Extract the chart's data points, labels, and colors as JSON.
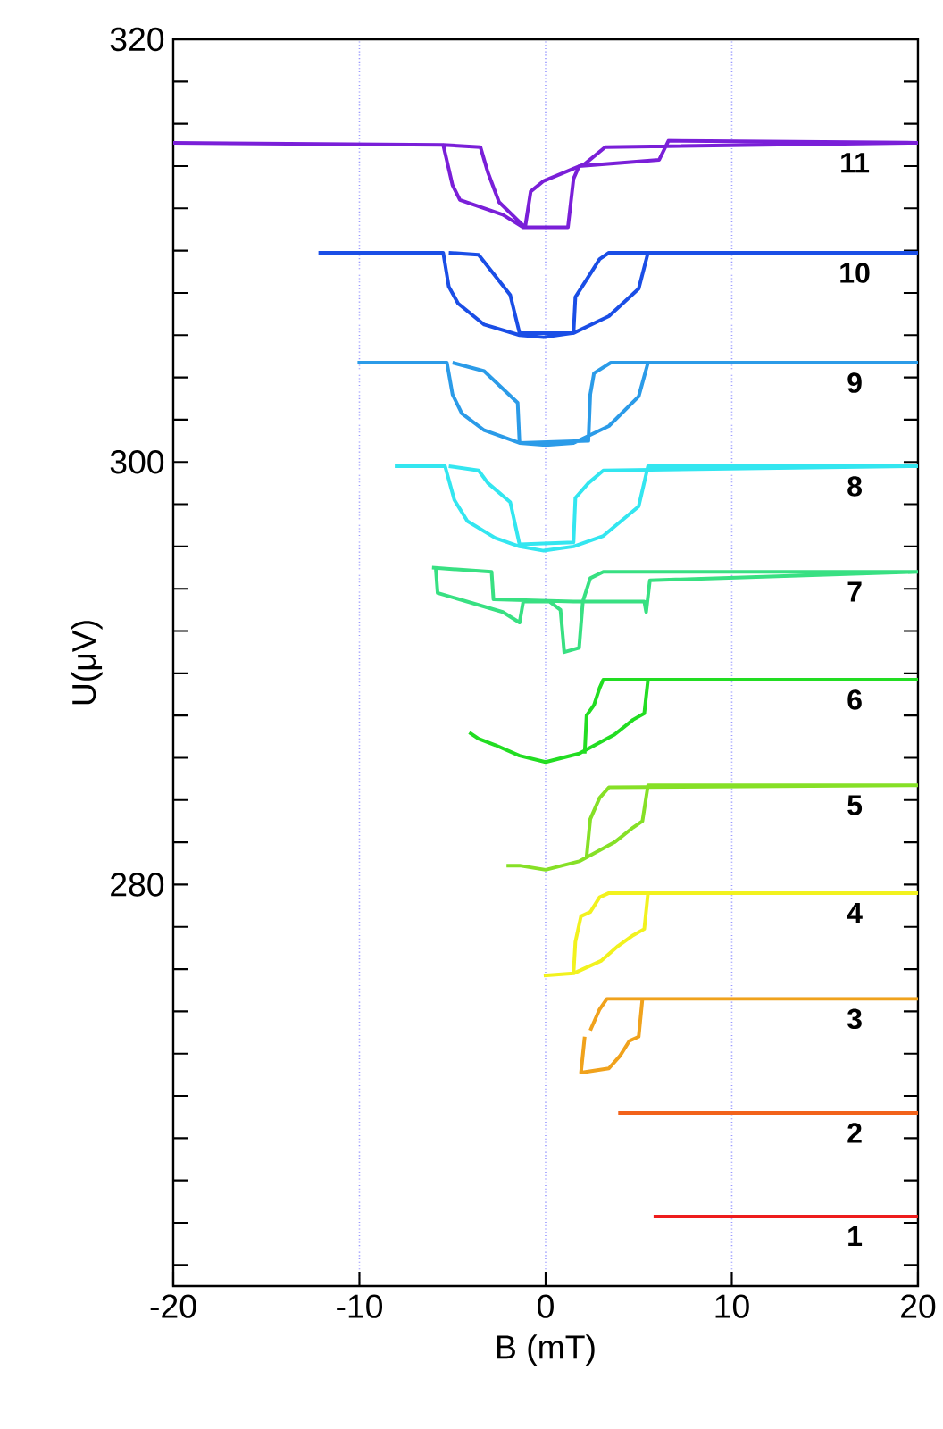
{
  "chart_data": {
    "type": "line",
    "xlabel": "B (mT)",
    "ylabel": "U(μV)",
    "xlim": [
      -20,
      20
    ],
    "ylim": [
      261,
      320
    ],
    "xticks": [
      -20,
      -10,
      0,
      10,
      20
    ],
    "yticks": [
      {
        "value": 262,
        "label": null
      },
      {
        "value": 264,
        "label": null
      },
      {
        "value": 266,
        "label": null
      },
      {
        "value": 268,
        "label": null
      },
      {
        "value": 270,
        "label": null
      },
      {
        "value": 272,
        "label": null
      },
      {
        "value": 274,
        "label": null
      },
      {
        "value": 276,
        "label": null
      },
      {
        "value": 278,
        "label": null
      },
      280,
      {
        "value": 282,
        "label": null
      },
      {
        "value": 284,
        "label": null
      },
      {
        "value": 286,
        "label": null
      },
      {
        "value": 288,
        "label": null
      },
      {
        "value": 290,
        "label": null
      },
      {
        "value": 292,
        "label": null
      },
      {
        "value": 294,
        "label": null
      },
      {
        "value": 296,
        "label": null
      },
      {
        "value": 298,
        "label": null
      },
      300,
      {
        "value": 302,
        "label": null
      },
      {
        "value": 304,
        "label": null
      },
      {
        "value": 306,
        "label": null
      },
      {
        "value": 308,
        "label": null
      },
      {
        "value": 310,
        "label": null
      },
      {
        "value": 312,
        "label": null
      },
      {
        "value": 314,
        "label": null
      },
      {
        "value": 316,
        "label": null
      },
      {
        "value": 318,
        "label": null
      },
      320
    ],
    "grid": "x",
    "marker": "none",
    "line_style": "solid",
    "series": [
      {
        "name": "1",
        "color": "#ee1c1c",
        "x": [
          5.8,
          20
        ],
        "values": [
          264.3,
          264.3
        ]
      },
      {
        "name": "2",
        "color": "#f2621a",
        "x": [
          3.9,
          20
        ],
        "values": [
          269.2,
          269.2
        ]
      },
      {
        "name": "3",
        "color": "#f0a21c",
        "x": [
          2.1,
          1.9,
          3.4,
          4.0,
          4.5,
          5.0,
          5.2,
          20,
          3.3,
          2.9,
          2.4
        ],
        "values": [
          272.8,
          271.1,
          271.3,
          271.9,
          272.6,
          272.8,
          274.6,
          274.6,
          274.6,
          274.1,
          273.1
        ]
      },
      {
        "name": "4",
        "color": "#f2f21e",
        "x": [
          -0.1,
          1.5,
          3.0,
          3.9,
          4.7,
          5.3,
          5.5,
          20,
          3.4,
          2.9,
          2.4,
          1.9,
          1.6,
          1.5
        ],
        "values": [
          275.7,
          275.8,
          276.4,
          277.1,
          277.6,
          277.9,
          279.6,
          279.6,
          279.6,
          279.4,
          278.7,
          278.5,
          277.3,
          275.8
        ]
      },
      {
        "name": "5",
        "color": "#86e026",
        "x": [
          -2.1,
          -1.4,
          0.0,
          1.8,
          3.7,
          4.7,
          5.2,
          5.5,
          20,
          3.4,
          2.9,
          2.4,
          2.2
        ],
        "values": [
          280.9,
          280.9,
          280.7,
          281.1,
          282.0,
          282.7,
          283.0,
          284.7,
          284.7,
          284.6,
          284.1,
          283.1,
          281.3
        ]
      },
      {
        "name": "6",
        "color": "#22dd22",
        "x": [
          -4.1,
          -3.6,
          -2.7,
          -1.4,
          0.0,
          1.8,
          3.7,
          4.7,
          5.3,
          5.5,
          20,
          3.1,
          2.9,
          2.6,
          2.2,
          2.1
        ],
        "values": [
          287.2,
          286.9,
          286.6,
          286.1,
          285.8,
          286.2,
          287.1,
          287.8,
          288.1,
          289.7,
          289.7,
          289.7,
          289.3,
          288.5,
          288.0,
          286.2
        ]
      },
      {
        "name": "7",
        "color": "#38e082",
        "x": [
          -6.1,
          -2.9,
          -2.8,
          1.5,
          5.3,
          5.4,
          5.6,
          20,
          3.1,
          2.4,
          2.0,
          1.8,
          1.0,
          0.8,
          0.2,
          -1.2,
          -1.4,
          -2.3,
          -5.8,
          -5.9
        ],
        "values": [
          295.0,
          294.8,
          293.5,
          293.4,
          293.4,
          292.9,
          294.4,
          294.8,
          294.8,
          294.5,
          293.4,
          291.2,
          291.0,
          293.0,
          293.4,
          293.4,
          292.4,
          292.9,
          293.8,
          295.0
        ]
      },
      {
        "name": "8",
        "color": "#33e6f0",
        "x": [
          -8.1,
          -5.4,
          -4.9,
          -4.2,
          -2.7,
          -1.4,
          -0.1,
          1.5,
          3.1,
          5.0,
          5.5,
          20,
          3.1,
          2.3,
          1.6,
          1.5,
          -1.4,
          -1.9,
          -3.1,
          -3.6,
          -5.2
        ],
        "values": [
          299.8,
          299.8,
          298.2,
          297.2,
          296.4,
          296.0,
          295.8,
          296.0,
          296.5,
          297.9,
          299.8,
          299.8,
          299.6,
          299.0,
          298.3,
          296.2,
          296.1,
          298.1,
          299.0,
          299.6,
          299.8
        ]
      },
      {
        "name": "9",
        "color": "#2b9be8",
        "x": [
          -10.1,
          -5.3,
          -5.0,
          -4.5,
          -3.3,
          -1.4,
          0.0,
          1.5,
          3.4,
          5.0,
          5.5,
          20,
          3.5,
          2.6,
          2.4,
          2.3,
          -1.4,
          -1.5,
          -3.3,
          -5.0
        ],
        "values": [
          304.7,
          304.7,
          303.2,
          302.3,
          301.5,
          300.9,
          300.8,
          300.9,
          301.7,
          303.1,
          304.7,
          304.7,
          304.7,
          304.2,
          303.2,
          301.0,
          300.9,
          302.8,
          304.3,
          304.7
        ]
      },
      {
        "name": "10",
        "color": "#1a4ee6",
        "x": [
          -12.2,
          -5.5,
          -5.2,
          -4.7,
          -3.3,
          -1.4,
          -0.1,
          1.5,
          3.4,
          5.0,
          5.5,
          20,
          3.4,
          2.9,
          2.4,
          1.6,
          1.5,
          -1.4,
          -1.9,
          -3.6,
          -5.2
        ],
        "values": [
          309.9,
          309.9,
          308.3,
          307.5,
          306.5,
          306.0,
          305.9,
          306.1,
          306.9,
          308.2,
          309.9,
          309.9,
          309.9,
          309.6,
          308.9,
          307.8,
          306.1,
          306.1,
          307.9,
          309.8,
          309.9
        ]
      },
      {
        "name": "11",
        "color": "#7a1fd8",
        "x": [
          -20,
          -5.5,
          -5.0,
          -4.6,
          -2.3,
          -1.2,
          1.2,
          1.5,
          1.8,
          6.1,
          6.6,
          20,
          3.2,
          2.1,
          -0.1,
          -0.8,
          -1.1,
          -2.5,
          -3.1,
          -3.5,
          -5.5
        ],
        "values": [
          315.1,
          315.0,
          313.1,
          312.4,
          311.7,
          311.1,
          311.1,
          313.4,
          314.0,
          314.3,
          315.2,
          315.1,
          314.9,
          314.1,
          313.3,
          312.8,
          311.1,
          312.3,
          313.7,
          314.9,
          315.0
        ]
      }
    ]
  }
}
